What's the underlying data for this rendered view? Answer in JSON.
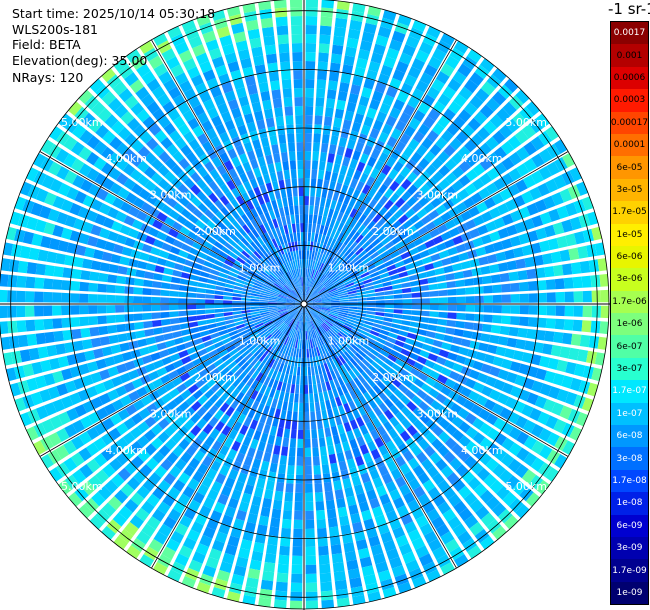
{
  "info": {
    "start_time": "Start time: 2025/10/14 05:30:18",
    "instrument": "WLS200s-181",
    "field": "Field: BETA",
    "elevation": "Elevation(deg): 35.00",
    "nrays": "NRays: 120"
  },
  "colorbar": {
    "title": "-1 sr-1",
    "labels": [
      "0.0017",
      "0.001",
      "0.0006",
      "0.0003",
      "0.00017",
      "0.0001",
      "6e-05",
      "3e-05",
      "1.7e-05",
      "1e-05",
      "6e-06",
      "3e-06",
      "1.7e-06",
      "1e-06",
      "6e-07",
      "3e-07",
      "1.7e-07",
      "1e-07",
      "6e-08",
      "3e-08",
      "1.7e-08",
      "1e-08",
      "6e-09",
      "3e-09",
      "1.7e-09",
      "1e-09"
    ],
    "colors": [
      "#8b0000",
      "#b40000",
      "#dc0000",
      "#ff1a00",
      "#ff4500",
      "#ff6e00",
      "#ff9600",
      "#ffb400",
      "#ffd200",
      "#ffef00",
      "#e8f500",
      "#c8ff1e",
      "#a6ff50",
      "#7dff7d",
      "#50ffa6",
      "#28ffd0",
      "#00e8ff",
      "#00c0ff",
      "#0098ff",
      "#0070ff",
      "#0048ff",
      "#0020e8",
      "#0000d0",
      "#0000b0",
      "#000090",
      "#000070"
    ],
    "text_colors": [
      "#fff",
      "#000",
      "#000",
      "#000",
      "#000",
      "#000",
      "#000",
      "#000",
      "#000",
      "#000",
      "#000",
      "#000",
      "#000",
      "#000",
      "#000",
      "#000",
      "#fff",
      "#fff",
      "#fff",
      "#fff",
      "#fff",
      "#fff",
      "#fff",
      "#fff",
      "#fff",
      "#fff"
    ]
  },
  "ppi": {
    "range_labels": [
      "1.00km",
      "2.00km",
      "3.00km",
      "4.00km",
      "5.00km"
    ],
    "range_km": [
      1,
      2,
      3,
      4,
      5
    ],
    "max_range_km": 5.2,
    "rays": 120
  }
}
